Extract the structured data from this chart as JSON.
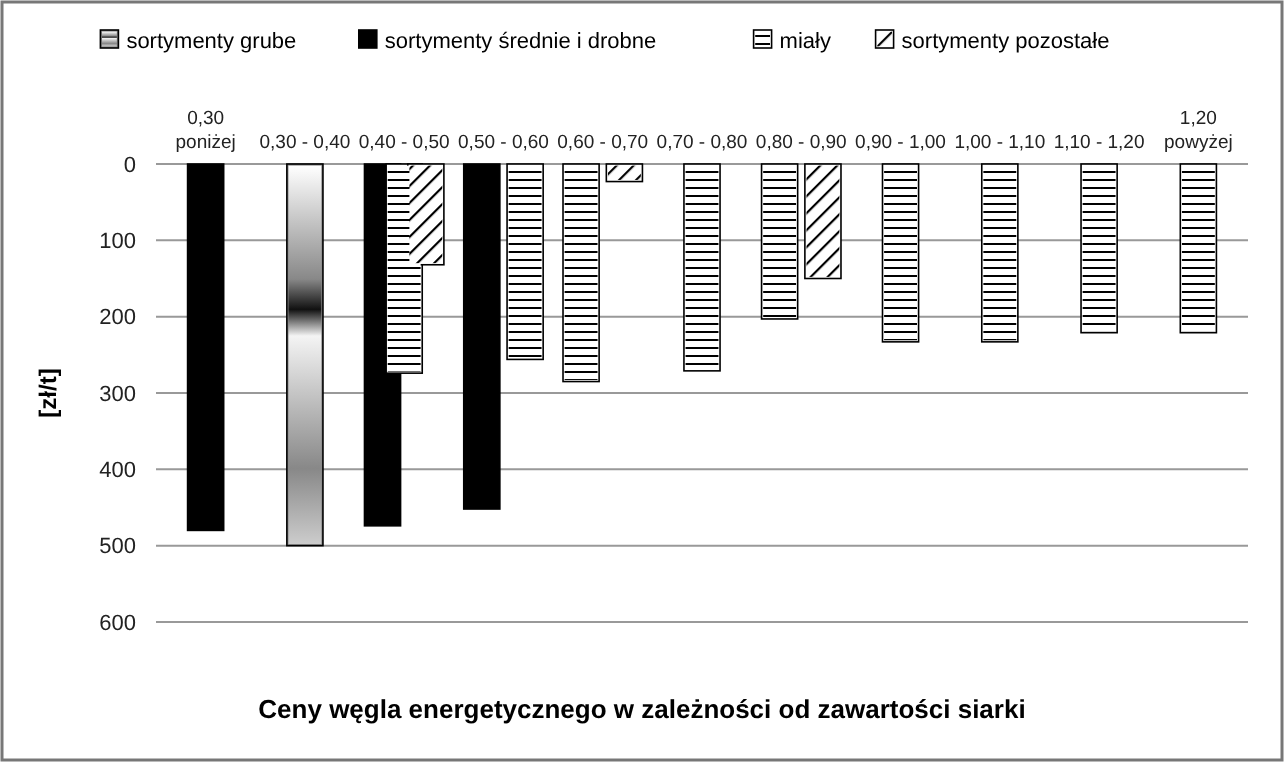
{
  "chart_data": {
    "type": "bar",
    "title": "Ceny węgla energetycznego w zależności od zawartości siarki",
    "ylabel": "[zł/t]",
    "categories": [
      "0,30 poniżej",
      "0,30 - 0,40",
      "0,40 - 0,50",
      "0,50 - 0,60",
      "0,60 - 0,70",
      "0,70 - 0,80",
      "0,80 - 0,90",
      "0,90 - 1,00",
      "1,00 - 1,10",
      "1,10 - 1,20",
      "1,20 powyżej"
    ],
    "series": [
      {
        "name": "sortymenty grube",
        "color": "#888888",
        "values": [
          null,
          500,
          null,
          null,
          null,
          null,
          null,
          null,
          null,
          null,
          null
        ]
      },
      {
        "name": "sortymenty średnie i drobne",
        "color": "#000000",
        "values": [
          480,
          null,
          474,
          452,
          null,
          null,
          null,
          null,
          null,
          null,
          null
        ]
      },
      {
        "name": "miały",
        "color": "#ffffff",
        "values": [
          null,
          null,
          274,
          256,
          285,
          271,
          203,
          233,
          233,
          221,
          221
        ]
      },
      {
        "name": "sortymenty pozostałe",
        "color": "#ffffff",
        "values": [
          null,
          null,
          132,
          null,
          23,
          null,
          150,
          null,
          null,
          null,
          null
        ]
      }
    ],
    "ylim": [
      600,
      0
    ],
    "yticks": [
      0,
      100,
      200,
      300,
      400,
      500,
      600
    ],
    "grid": "y",
    "legend": "top"
  }
}
